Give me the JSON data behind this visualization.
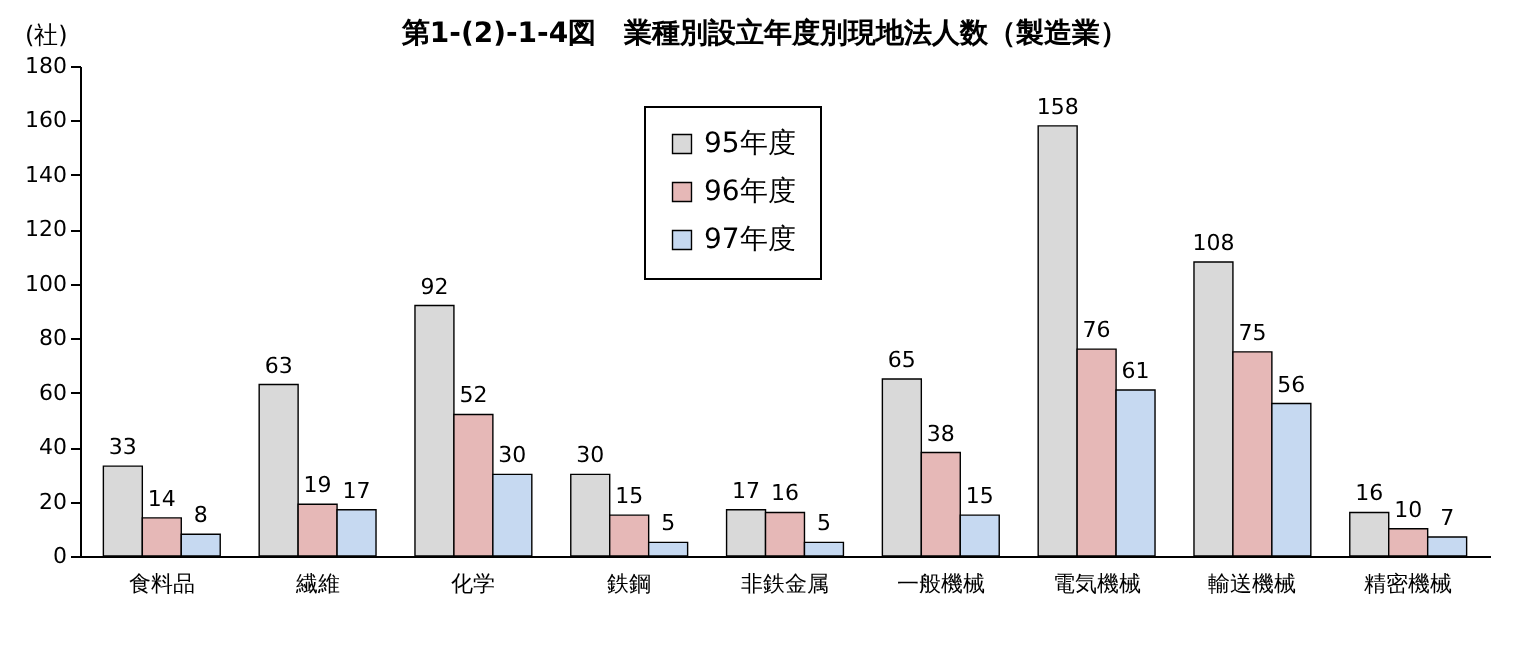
{
  "chart_data": {
    "type": "bar",
    "title": "第1-(2)-1-4図　業種別設立年度別現地法人数（製造業）",
    "ylabel": "(社)",
    "categories": [
      "食料品",
      "繊維",
      "化学",
      "鉄鋼",
      "非鉄金属",
      "一般機械",
      "電気機械",
      "輸送機械",
      "精密機械"
    ],
    "series": [
      {
        "name": "95年度",
        "color": "#d9d9d9",
        "values": [
          33,
          63,
          92,
          30,
          17,
          65,
          158,
          108,
          16
        ]
      },
      {
        "name": "96年度",
        "color": "#e6b8b7",
        "values": [
          14,
          19,
          52,
          15,
          16,
          38,
          76,
          75,
          10
        ]
      },
      {
        "name": "97年度",
        "color": "#c6d9f1",
        "values": [
          8,
          17,
          30,
          5,
          5,
          15,
          61,
          56,
          7
        ]
      }
    ],
    "ylim": [
      0,
      180
    ],
    "yticks": [
      0,
      20,
      40,
      60,
      80,
      100,
      120,
      140,
      160,
      180
    ],
    "grid": false,
    "legend": "top",
    "data_labels": true
  }
}
